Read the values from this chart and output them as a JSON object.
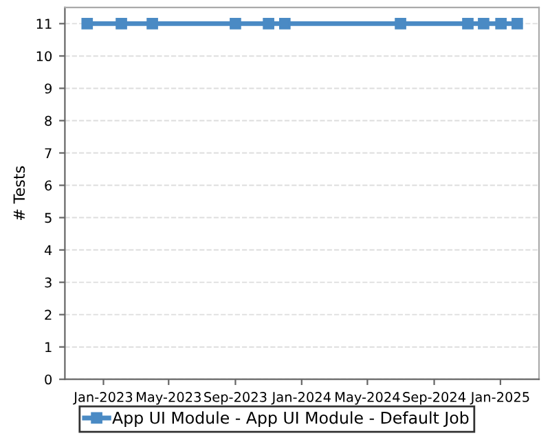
{
  "chart_data": {
    "type": "line",
    "ylabel": "# Tests",
    "x": [
      "2022-12-02",
      "2023-02-03",
      "2023-04-01",
      "2023-09-01",
      "2023-11-01",
      "2023-12-01",
      "2024-07-01",
      "2024-11-02",
      "2024-12-01",
      "2025-01-02",
      "2025-02-01"
    ],
    "series": [
      {
        "name": "App UI Module - App UI Module - Default Job",
        "color": "#4a8ac4",
        "values": [
          11,
          11,
          11,
          11,
          11,
          11,
          11,
          11,
          11,
          11,
          11
        ]
      }
    ],
    "xlim": [
      "2022-10-22",
      "2025-03-13"
    ],
    "xticks": [
      {
        "value": "2023-01-01",
        "label": "Jan-2023"
      },
      {
        "value": "2023-05-01",
        "label": "May-2023"
      },
      {
        "value": "2023-09-01",
        "label": "Sep-2023"
      },
      {
        "value": "2024-01-01",
        "label": "Jan-2024"
      },
      {
        "value": "2024-05-01",
        "label": "May-2024"
      },
      {
        "value": "2024-09-01",
        "label": "Sep-2024"
      },
      {
        "value": "2025-01-01",
        "label": "Jan-2025"
      }
    ],
    "ylim": [
      0,
      11.5
    ],
    "yticks": [
      0,
      1,
      2,
      3,
      4,
      5,
      6,
      7,
      8,
      9,
      10,
      11
    ],
    "grid": "y",
    "legend": "bottom",
    "marker": "square",
    "line_style": "solid"
  }
}
